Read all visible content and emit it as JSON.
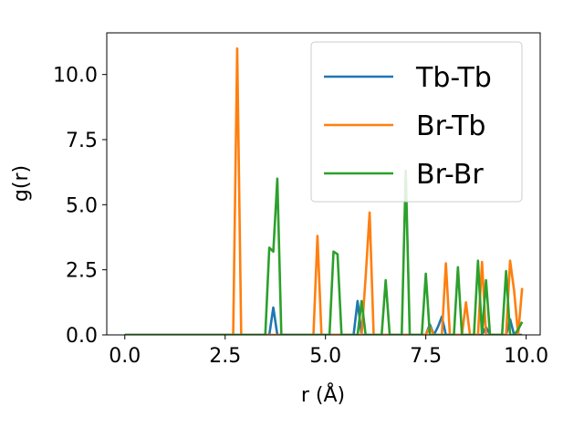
{
  "chart_data": {
    "type": "line",
    "xlabel": "r (Å)",
    "ylabel": "g(r)",
    "xlim": [
      -0.45,
      10.35
    ],
    "ylim": [
      0,
      11.6
    ],
    "xticks": [
      0.0,
      2.5,
      5.0,
      7.5,
      10.0
    ],
    "xtick_labels": [
      "0.0",
      "2.5",
      "5.0",
      "7.5",
      "10.0"
    ],
    "yticks": [
      0.0,
      2.5,
      5.0,
      7.5,
      10.0
    ],
    "ytick_labels": [
      "0.0",
      "2.5",
      "5.0",
      "7.5",
      "10.0"
    ],
    "grid": false,
    "legend_position": "top-right",
    "series": [
      {
        "name": "Tb-Tb",
        "color": "#1f77b4",
        "x": [
          0.0,
          3.5,
          3.6,
          3.7,
          3.8,
          3.9,
          5.7,
          5.8,
          5.9,
          7.3,
          7.5,
          7.6,
          7.7,
          7.8,
          7.9,
          8.0,
          8.1,
          8.9,
          9.0,
          9.1,
          9.4,
          9.5,
          9.6,
          9.7,
          9.9
        ],
        "y": [
          0.0,
          0.0,
          0.0,
          1.05,
          0.0,
          0.0,
          0.0,
          1.3,
          0.0,
          0.0,
          0.0,
          0.4,
          0.0,
          0.3,
          0.7,
          0.0,
          0.0,
          0.0,
          0.3,
          0.0,
          0.0,
          0.0,
          0.6,
          0.0,
          0.0
        ]
      },
      {
        "name": "Br-Tb",
        "color": "#ff7f0e",
        "x": [
          0.0,
          2.6,
          2.7,
          2.8,
          2.9,
          3.0,
          4.6,
          4.7,
          4.8,
          4.9,
          5.9,
          6.0,
          6.1,
          6.2,
          7.5,
          7.6,
          7.7,
          7.9,
          8.0,
          8.1,
          8.3,
          8.4,
          8.5,
          8.6,
          8.8,
          8.9,
          9.0,
          9.1,
          9.3,
          9.4,
          9.5,
          9.6,
          9.7,
          9.8,
          9.9
        ],
        "y": [
          0.0,
          0.0,
          0.0,
          11.0,
          0.0,
          0.0,
          0.0,
          0.0,
          3.8,
          0.0,
          0.0,
          2.2,
          4.7,
          0.0,
          0.0,
          0.3,
          0.0,
          0.0,
          2.75,
          0.0,
          0.0,
          0.0,
          1.25,
          0.0,
          0.0,
          2.8,
          0.0,
          0.0,
          0.0,
          0.0,
          0.0,
          2.85,
          1.7,
          0.0,
          1.8
        ]
      },
      {
        "name": "Br-Br",
        "color": "#2ca02c",
        "x": [
          0.0,
          3.4,
          3.5,
          3.6,
          3.7,
          3.8,
          3.9,
          5.0,
          5.1,
          5.2,
          5.3,
          5.4,
          5.8,
          5.9,
          6.0,
          6.4,
          6.5,
          6.6,
          6.9,
          7.0,
          7.1,
          7.4,
          7.5,
          7.6,
          7.8,
          8.0,
          8.2,
          8.3,
          8.4,
          8.6,
          8.7,
          8.8,
          8.9,
          9.0,
          9.1,
          9.2,
          9.4,
          9.5,
          9.6,
          9.7,
          9.8,
          9.9
        ],
        "y": [
          0.0,
          0.0,
          0.0,
          3.35,
          3.2,
          6.0,
          0.0,
          0.0,
          0.0,
          3.2,
          3.1,
          0.0,
          0.0,
          1.3,
          0.0,
          0.0,
          2.1,
          0.0,
          0.0,
          6.3,
          0.0,
          0.0,
          2.35,
          0.0,
          0.0,
          0.0,
          0.0,
          2.6,
          0.0,
          0.0,
          0.0,
          2.85,
          0.0,
          2.1,
          0.0,
          0.0,
          0.0,
          2.45,
          0.0,
          0.0,
          0.2,
          0.5
        ]
      }
    ]
  }
}
